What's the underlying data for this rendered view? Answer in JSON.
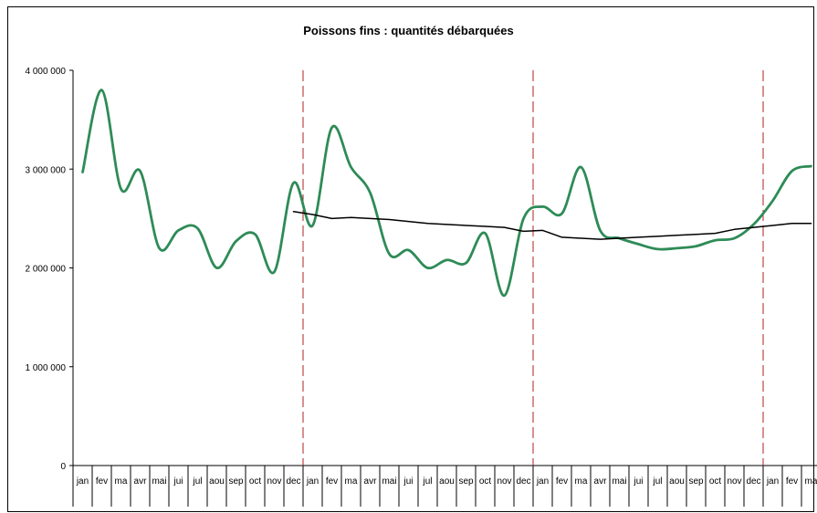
{
  "chart_data": {
    "type": "line",
    "title": "Poissons fins : quantités débarquées",
    "xlabel": "",
    "ylabel": "",
    "ylim": [
      0,
      4000000
    ],
    "yticks": [
      0,
      1000000,
      2000000,
      3000000,
      4000000
    ],
    "ytick_labels": [
      "0",
      "1 000 000",
      "2 000 000",
      "3 000 000",
      "4 000 000"
    ],
    "grid": false,
    "legend": "none",
    "categories": [
      "jan",
      "fev",
      "ma",
      "avr",
      "mai",
      "jui",
      "jul",
      "aou",
      "sep",
      "oct",
      "nov",
      "dec",
      "jan",
      "fev",
      "ma",
      "avr",
      "mai",
      "jui",
      "jul",
      "aou",
      "sep",
      "oct",
      "nov",
      "dec",
      "jan",
      "fev",
      "ma",
      "avr",
      "mai",
      "jui",
      "jul",
      "aou",
      "sep",
      "oct",
      "nov",
      "dec",
      "jan",
      "fev",
      "ma"
    ],
    "dividers_after_index": [
      11,
      23,
      35
    ],
    "series": [
      {
        "color": "#2e8b57",
        "values": [
          2970000,
          3800000,
          2800000,
          2980000,
          2200000,
          2380000,
          2400000,
          2000000,
          2270000,
          2340000,
          1960000,
          2860000,
          2430000,
          3420000,
          3020000,
          2760000,
          2140000,
          2180000,
          2000000,
          2080000,
          2050000,
          2350000,
          1720000,
          2500000,
          2620000,
          2550000,
          3020000,
          2380000,
          2300000,
          2240000,
          2190000,
          2200000,
          2220000,
          2280000,
          2300000,
          2440000,
          2680000,
          2980000,
          3030000
        ]
      },
      {
        "color": "#000000",
        "values": [
          null,
          null,
          null,
          null,
          null,
          null,
          null,
          null,
          null,
          null,
          null,
          2570000,
          2540000,
          2500000,
          2510000,
          2500000,
          2490000,
          2470000,
          2450000,
          2440000,
          2430000,
          2420000,
          2410000,
          2370000,
          2380000,
          2310000,
          2300000,
          2290000,
          2300000,
          2310000,
          2320000,
          2330000,
          2340000,
          2350000,
          2390000,
          2410000,
          2430000,
          2450000,
          2450000
        ]
      }
    ]
  }
}
